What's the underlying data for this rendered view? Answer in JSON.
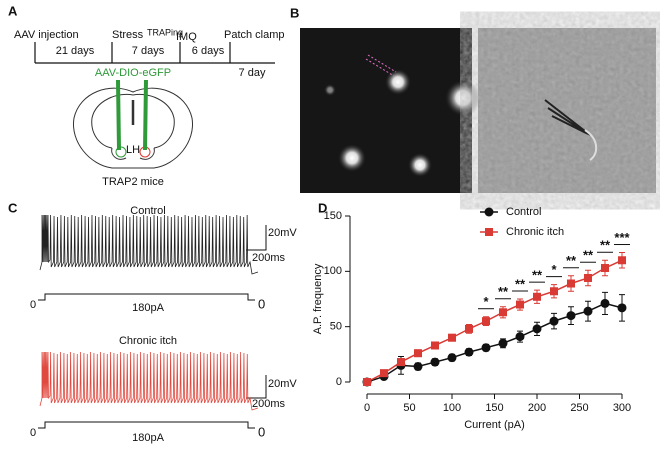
{
  "panel_labels": [
    "A",
    "B",
    "C",
    "D"
  ],
  "timeline": {
    "events": [
      "AAV injection",
      "Stress",
      "TRAPing",
      "IMQ",
      "Patch clamp"
    ],
    "intervals": [
      "21 days",
      "7 days",
      "6 days",
      "7 day"
    ]
  },
  "virus": "AAV-DIO-eGFP",
  "region": "LH",
  "mouse": "TRAP2 mice",
  "traces": [
    {
      "title": "Control",
      "voltage_scale": "20mV",
      "time_scale": "200ms",
      "current": "180pA",
      "baseline_left": "0",
      "baseline_right": "0"
    },
    {
      "title": "Chronic itch",
      "voltage_scale": "20mV",
      "time_scale": "200ms",
      "current": "180pA",
      "baseline_left": "0",
      "baseline_right": "0"
    }
  ],
  "chart_data": {
    "type": "line",
    "xlabel": "Current (pA)",
    "ylabel": "A.P. frequency",
    "x": [
      0,
      20,
      40,
      60,
      80,
      100,
      120,
      140,
      160,
      180,
      200,
      220,
      240,
      260,
      280,
      300
    ],
    "xlim": [
      0,
      300
    ],
    "ylim": [
      0,
      150
    ],
    "xticks": [
      0,
      50,
      100,
      150,
      200,
      250,
      300
    ],
    "yticks": [
      0,
      50,
      100,
      150
    ],
    "legend": "upper right",
    "series": [
      {
        "name": "Control",
        "color": "#111111",
        "marker": "circle",
        "values": [
          0,
          5,
          15,
          14,
          18,
          22,
          27,
          31,
          35,
          41,
          48,
          55,
          60,
          64,
          71,
          67
        ],
        "errors": [
          0,
          2,
          8,
          3,
          3,
          3,
          3,
          3,
          4,
          5,
          6,
          7,
          8,
          9,
          10,
          12
        ]
      },
      {
        "name": "Chronic itch",
        "color": "#d93a34",
        "marker": "square",
        "values": [
          0,
          8,
          18,
          26,
          33,
          40,
          48,
          55,
          63,
          70,
          77,
          82,
          89,
          94,
          103,
          110
        ],
        "errors": [
          0,
          2,
          3,
          3,
          3,
          3,
          4,
          4,
          5,
          5,
          6,
          6,
          7,
          7,
          7,
          7
        ]
      }
    ],
    "annotations": [
      {
        "x": 140,
        "text": "*"
      },
      {
        "x": 160,
        "text": "**"
      },
      {
        "x": 180,
        "text": "**"
      },
      {
        "x": 200,
        "text": "**"
      },
      {
        "x": 220,
        "text": "*"
      },
      {
        "x": 240,
        "text": "**"
      },
      {
        "x": 260,
        "text": "**"
      },
      {
        "x": 280,
        "text": "**"
      },
      {
        "x": 300,
        "text": "***"
      }
    ]
  }
}
